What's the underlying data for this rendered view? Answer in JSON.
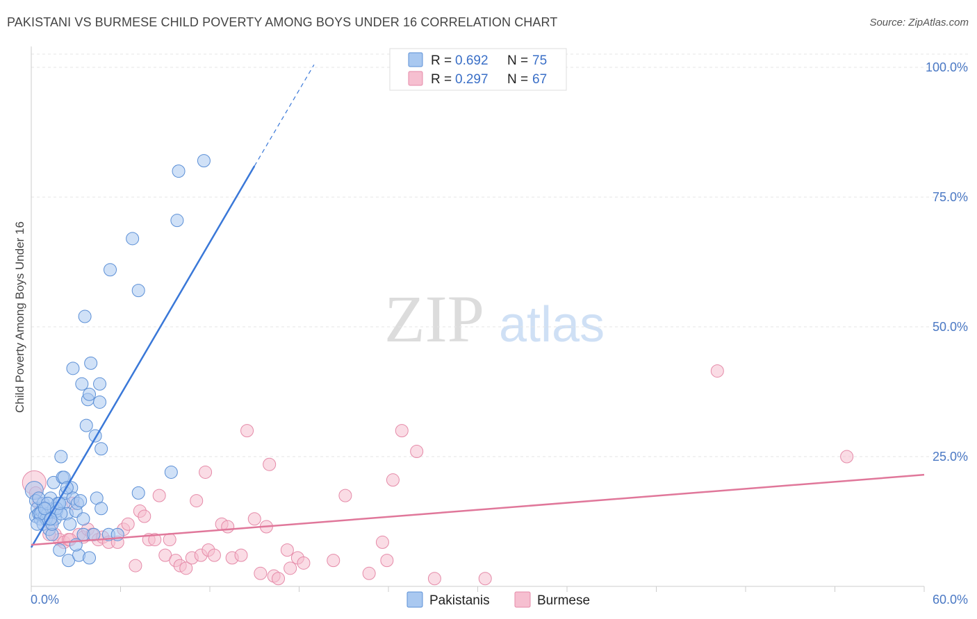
{
  "header": {
    "title": "PAKISTANI VS BURMESE CHILD POVERTY AMONG BOYS UNDER 16 CORRELATION CHART",
    "source": "Source: ZipAtlas.com"
  },
  "watermark": {
    "zip": "ZIP",
    "atlas": "atlas"
  },
  "legend": {
    "r_label": "R =",
    "n_label": "N =",
    "entries": [
      {
        "name": "Pakistanis",
        "r": "0.692",
        "n": "75",
        "fill": "#a9c8f0",
        "stroke": "#5b8fd6"
      },
      {
        "name": "Burmese",
        "r": "0.297",
        "n": "67",
        "fill": "#f6bfd0",
        "stroke": "#e58aa8"
      }
    ]
  },
  "chart_data": {
    "type": "scatter",
    "title": "PAKISTANI VS BURMESE CHILD POVERTY AMONG BOYS UNDER 16 CORRELATION CHART",
    "xlabel": "",
    "ylabel": "Child Poverty Among Boys Under 16",
    "xlim": [
      0,
      60
    ],
    "ylim": [
      0,
      105
    ],
    "x_tick_labels": [
      "0.0%",
      "60.0%"
    ],
    "y_ticks": [
      25,
      50,
      75,
      100
    ],
    "y_tick_labels": [
      "25.0%",
      "50.0%",
      "75.0%",
      "100.0%"
    ],
    "colors": {
      "pakistanis": "#3a78d8",
      "burmese": "#e0779a"
    },
    "series": [
      {
        "name": "Pakistanis",
        "trend": {
          "x0": 0,
          "y0": 7.5,
          "x1": 15,
          "y1": 81,
          "x_dash_end": 19,
          "y_dash_end": 100.5
        },
        "points": [
          [
            0.2,
            18.5
          ],
          [
            0.3,
            16.5
          ],
          [
            0.3,
            13.5
          ],
          [
            0.4,
            15
          ],
          [
            0.5,
            14
          ],
          [
            0.6,
            13
          ],
          [
            0.7,
            14.5
          ],
          [
            0.8,
            12
          ],
          [
            0.8,
            16
          ],
          [
            0.9,
            13.5
          ],
          [
            1.0,
            15
          ],
          [
            1.1,
            14
          ],
          [
            1.2,
            11
          ],
          [
            1.3,
            17
          ],
          [
            1.4,
            10
          ],
          [
            1.5,
            20
          ],
          [
            1.5,
            15
          ],
          [
            1.6,
            13
          ],
          [
            1.7,
            14.5
          ],
          [
            1.8,
            16
          ],
          [
            1.9,
            7
          ],
          [
            2.0,
            25
          ],
          [
            2.1,
            21
          ],
          [
            2.2,
            16
          ],
          [
            2.3,
            18
          ],
          [
            2.4,
            14
          ],
          [
            2.5,
            5
          ],
          [
            2.6,
            12
          ],
          [
            2.7,
            19
          ],
          [
            2.8,
            17
          ],
          [
            3.0,
            14.5
          ],
          [
            3.1,
            16
          ],
          [
            3.2,
            6
          ],
          [
            3.3,
            16.5
          ],
          [
            3.5,
            13
          ],
          [
            3.7,
            31
          ],
          [
            3.8,
            36
          ],
          [
            3.9,
            5.5
          ],
          [
            2.8,
            42
          ],
          [
            3.4,
            39
          ],
          [
            3.6,
            52
          ],
          [
            3.9,
            37
          ],
          [
            4.0,
            43
          ],
          [
            4.3,
            29
          ],
          [
            4.4,
            17
          ],
          [
            4.6,
            35.5
          ],
          [
            4.6,
            39
          ],
          [
            4.7,
            26.5
          ],
          [
            4.7,
            15
          ],
          [
            5.2,
            10
          ],
          [
            5.3,
            61
          ],
          [
            5.8,
            10
          ],
          [
            6.8,
            67
          ],
          [
            7.2,
            57
          ],
          [
            7.2,
            18
          ],
          [
            9.4,
            22
          ],
          [
            9.8,
            70.5
          ],
          [
            9.9,
            80
          ],
          [
            11.6,
            82
          ],
          [
            1.0,
            13
          ],
          [
            0.5,
            17
          ],
          [
            1.7,
            15
          ],
          [
            2.2,
            21
          ],
          [
            3.0,
            8
          ],
          [
            1.4,
            12
          ],
          [
            2.0,
            14
          ],
          [
            0.6,
            14
          ],
          [
            1.1,
            16
          ],
          [
            3.5,
            10
          ],
          [
            0.9,
            15
          ],
          [
            2.4,
            19
          ],
          [
            1.9,
            16
          ],
          [
            4.2,
            10
          ],
          [
            0.4,
            12
          ],
          [
            1.3,
            13
          ]
        ]
      },
      {
        "name": "Burmese",
        "trend": {
          "x0": 0,
          "y0": 8,
          "x1": 60,
          "y1": 21.5
        },
        "points": [
          [
            0.2,
            20
          ],
          [
            0.3,
            18
          ],
          [
            0.5,
            16
          ],
          [
            0.8,
            15
          ],
          [
            1.0,
            14
          ],
          [
            1.3,
            12
          ],
          [
            1.6,
            10
          ],
          [
            1.9,
            9
          ],
          [
            2.2,
            8.5
          ],
          [
            2.5,
            9
          ],
          [
            2.8,
            16
          ],
          [
            3.2,
            10
          ],
          [
            3.5,
            9.5
          ],
          [
            3.8,
            11
          ],
          [
            4.1,
            10
          ],
          [
            4.5,
            9
          ],
          [
            4.8,
            9.5
          ],
          [
            5.2,
            8.5
          ],
          [
            5.8,
            8.5
          ],
          [
            6.2,
            11
          ],
          [
            6.5,
            12
          ],
          [
            7.0,
            4
          ],
          [
            7.3,
            14.5
          ],
          [
            7.6,
            13.5
          ],
          [
            7.9,
            9
          ],
          [
            8.3,
            9
          ],
          [
            8.6,
            17.5
          ],
          [
            9.0,
            6
          ],
          [
            9.3,
            9
          ],
          [
            9.7,
            5
          ],
          [
            10.0,
            4
          ],
          [
            10.4,
            3.5
          ],
          [
            10.8,
            5.5
          ],
          [
            11.1,
            16.5
          ],
          [
            11.4,
            6
          ],
          [
            11.7,
            22
          ],
          [
            11.9,
            7
          ],
          [
            12.3,
            6
          ],
          [
            12.8,
            12
          ],
          [
            13.2,
            11.5
          ],
          [
            13.5,
            5.5
          ],
          [
            14.1,
            6
          ],
          [
            14.5,
            30
          ],
          [
            15.0,
            13
          ],
          [
            15.4,
            2.5
          ],
          [
            15.8,
            11.5
          ],
          [
            16.0,
            23.5
          ],
          [
            16.3,
            2
          ],
          [
            16.6,
            1.5
          ],
          [
            17.2,
            7
          ],
          [
            17.4,
            3.5
          ],
          [
            17.9,
            5.5
          ],
          [
            18.3,
            4.5
          ],
          [
            20.3,
            5
          ],
          [
            21.1,
            17.5
          ],
          [
            22.7,
            2.5
          ],
          [
            23.6,
            8.5
          ],
          [
            23.9,
            5
          ],
          [
            24.3,
            20.5
          ],
          [
            24.9,
            30
          ],
          [
            25.9,
            26
          ],
          [
            27.1,
            1.5
          ],
          [
            30.5,
            1.5
          ],
          [
            46.1,
            41.5
          ],
          [
            54.8,
            25
          ],
          [
            1.2,
            10
          ],
          [
            2.6,
            9
          ]
        ]
      }
    ]
  }
}
